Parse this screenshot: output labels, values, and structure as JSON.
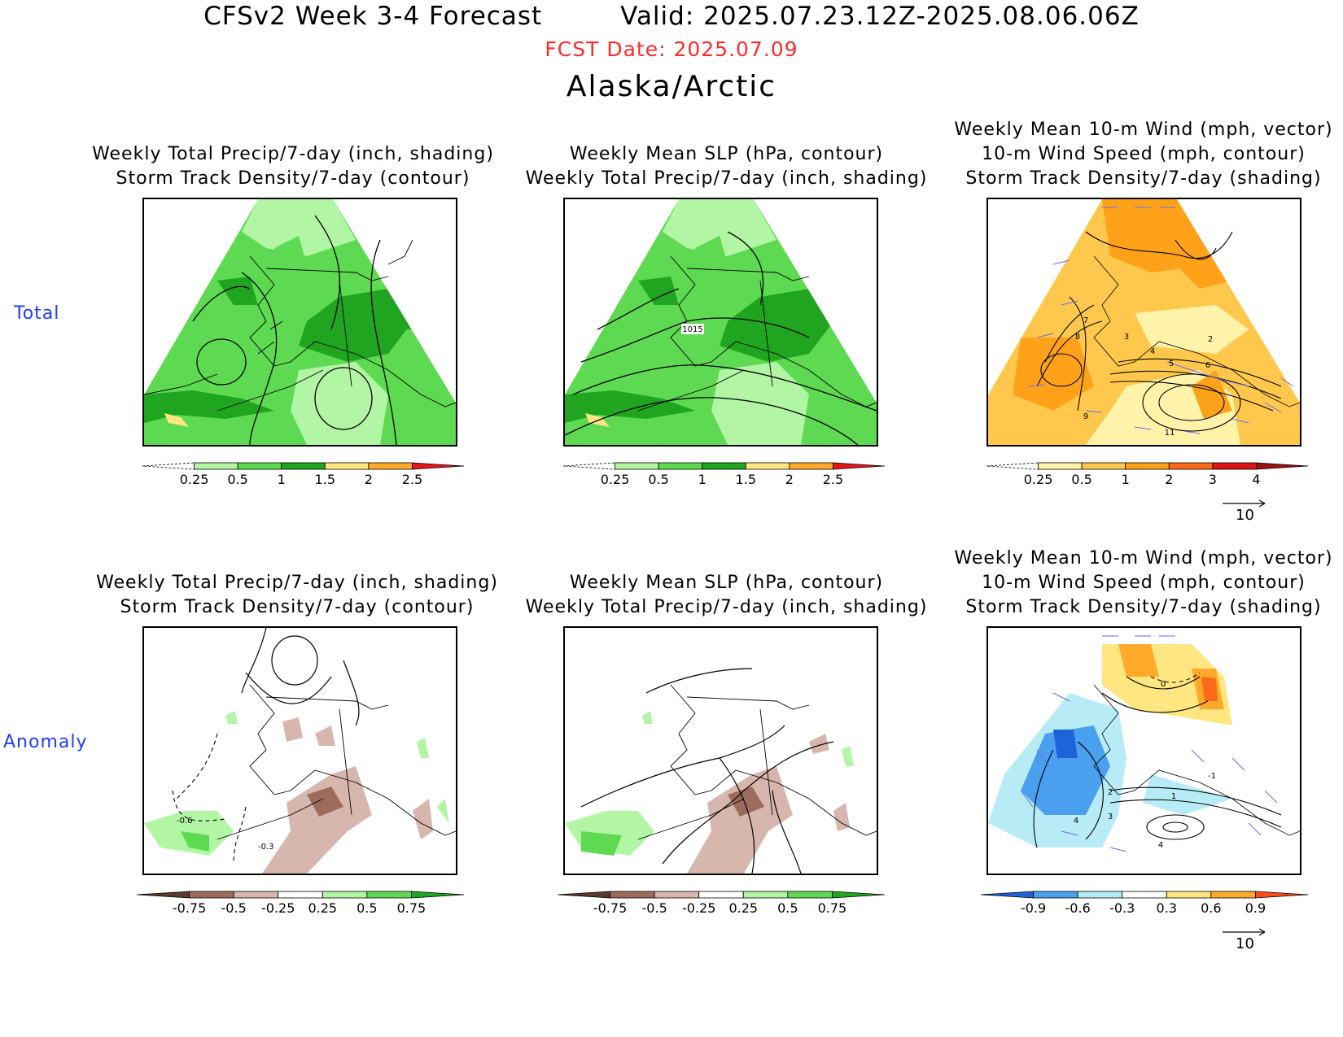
{
  "header": {
    "title_left": "CFSv2 Week 3-4 Forecast",
    "title_right": "Valid: 2025.07.23.12Z-2025.08.06.06Z",
    "fcst_date": "FCST Date: 2025.07.09",
    "region": "Alaska/Arctic"
  },
  "rows": {
    "total": "Total",
    "anomaly": "Anomaly"
  },
  "panel_titles": {
    "precip_storm": [
      "Weekly Total Precip/7-day (inch, shading)",
      "Storm Track Density/7-day (contour)"
    ],
    "slp_precip": [
      "Weekly Mean SLP (hPa, contour)",
      "Weekly Total Precip/7-day (inch, shading)"
    ],
    "wind_storm": [
      "Weekly Mean 10-m Wind (mph, vector)",
      "10-m Wind Speed (mph, contour)",
      "Storm Track Density/7-day (shading)"
    ]
  },
  "colorbars": {
    "precip_total": {
      "labels": [
        "0.25",
        "0.5",
        "1",
        "1.5",
        "2",
        "2.5"
      ],
      "colors": [
        "#ffffff",
        "#b2f5a4",
        "#5ed952",
        "#1fa51f",
        "#ffe681",
        "#ffaa2a",
        "#e6151a"
      ]
    },
    "storm_total": {
      "labels": [
        "0.25",
        "0.5",
        "1",
        "2",
        "3",
        "4"
      ],
      "colors": [
        "#ffffff",
        "#fff3a9",
        "#ffc84d",
        "#ffa21a",
        "#ff6a1a",
        "#dd1414",
        "#a01010"
      ]
    },
    "precip_anom": {
      "labels": [
        "-0.75",
        "-0.5",
        "-0.25",
        "0.25",
        "0.5",
        "0.75"
      ],
      "colors": [
        "#5a3a2a",
        "#9c6b5c",
        "#d7b7ad",
        "#ffffff",
        "#b2f5a4",
        "#5ed952",
        "#1fa51f"
      ]
    },
    "storm_anom": {
      "labels": [
        "-0.9",
        "-0.6",
        "-0.3",
        "0.3",
        "0.6",
        "0.9"
      ],
      "colors": [
        "#1e64d8",
        "#4aa0ee",
        "#b7ecf6",
        "#ffffff",
        "#ffe681",
        "#ffaa2a",
        "#ff4a1a"
      ]
    }
  },
  "contour_labels": {
    "total_slp": "1015",
    "total_wind": [
      "7",
      "8",
      "9",
      "3",
      "4",
      "5",
      "6",
      "2",
      "11"
    ],
    "anom_storm": [
      "-0.6",
      "-0.3"
    ],
    "anom_wind": [
      "0",
      "-1",
      "4",
      "3",
      "2",
      "1",
      "4"
    ]
  },
  "vector_ref": "10"
}
